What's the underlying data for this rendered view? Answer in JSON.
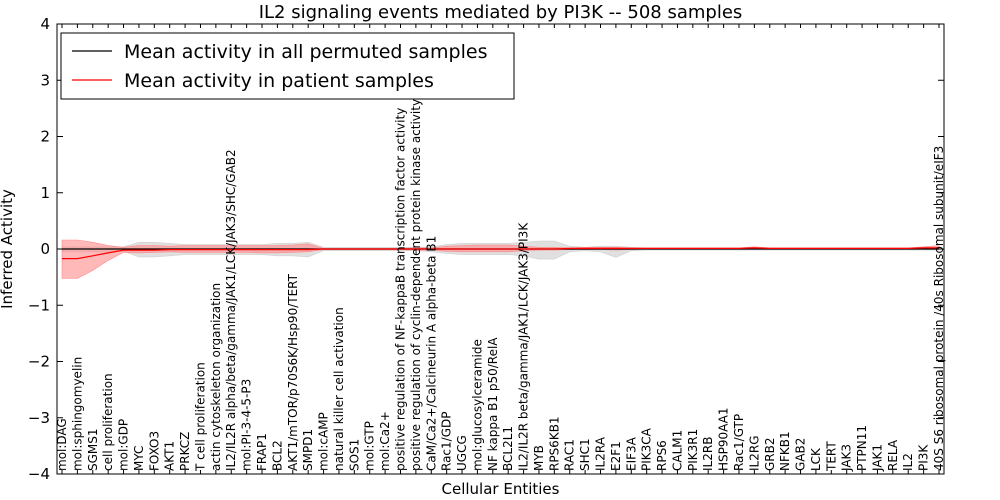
{
  "chart_data": {
    "type": "line",
    "title": "IL2 signaling events mediated by PI3K -- 508 samples",
    "xlabel": "Cellular Entities",
    "ylabel": "Inferred Activity",
    "ylim": [
      -4,
      4
    ],
    "yticks": [
      "4",
      "3",
      "2",
      "1",
      "0",
      "−1",
      "−2",
      "−3",
      "−4"
    ],
    "legend_position": "top-left",
    "categories": [
      "mol:DAG",
      "mol:sphingomyelin",
      "SGMS1",
      "cell proliferation",
      "mol:GDP",
      "MYC",
      "FOXO3",
      "AKT1",
      "PRKCZ",
      "T cell proliferation",
      "actin cytoskeleton organization",
      "IL2/IL2R alpha/beta/gamma/JAK1/LCK/JAK3/SHC/GAB2",
      "mol:PI-3-4-5-P3",
      "FRAP1",
      "BCL2",
      "AKT1/mTOR/p70S6K/Hsp90/TERT",
      "SMPD1",
      "mol:cAMP",
      "natural killer cell activation",
      "SOS1",
      "mol:GTP",
      "mol:Ca2+",
      "positive regulation of NF-kappaB transcription factor activity",
      "positive regulation of cyclin-dependent protein kinase activity",
      "CaM/Ca2+/Calcineurin A alpha-beta B1",
      "Rac1/GDP",
      "UGCG",
      "mol:glucosylceramide",
      "NF kappa B1 p50/RelA",
      "BCL2L1",
      "IL2/IL2R beta/gamma/JAK1/LCK/JAK3/PI3K",
      "MYB",
      "RPS6KB1",
      "RAC1",
      "SHC1",
      "IL2RA",
      "E2F1",
      "EIF3A",
      "PIK3CA",
      "RPS6",
      "CALM1",
      "PIK3R1",
      "IL2RB",
      "HSP90AA1",
      "Rac1/GTP",
      "IL2RG",
      "GRB2",
      "NFKB1",
      "GAB2",
      "LCK",
      "TERT",
      "JAK3",
      "PTPN11",
      "JAK1",
      "RELA",
      "IL2",
      "PI3K",
      "40S S6 ribosomal protein /40s Ribosomal subunit/eIF3"
    ],
    "series": [
      {
        "name": "Mean activity in all permuted samples",
        "color": "#000000",
        "band_color": "#d0d0d0",
        "values": [
          0,
          0,
          0,
          0,
          0,
          0,
          0,
          0,
          0,
          0,
          0,
          0,
          0,
          0,
          0,
          0,
          0,
          0,
          0,
          0,
          0,
          0,
          0,
          0,
          0,
          0,
          0,
          0,
          0,
          0,
          0,
          0,
          0,
          0,
          0,
          0,
          0,
          0,
          0,
          0,
          0,
          0,
          0,
          0,
          0,
          0,
          0,
          0,
          0,
          0,
          0,
          0,
          0,
          0,
          0,
          0,
          0,
          0
        ],
        "band_low": [
          -0.05,
          -0.05,
          -0.05,
          -0.05,
          -0.04,
          -0.14,
          -0.14,
          -0.12,
          -0.1,
          -0.1,
          -0.1,
          -0.1,
          -0.1,
          -0.1,
          -0.12,
          -0.12,
          -0.14,
          -0.03,
          -0.03,
          -0.03,
          -0.03,
          -0.03,
          -0.03,
          -0.03,
          -0.05,
          -0.08,
          -0.1,
          -0.1,
          -0.1,
          -0.1,
          -0.12,
          -0.18,
          -0.18,
          -0.05,
          -0.03,
          -0.05,
          -0.15,
          -0.03,
          -0.02,
          -0.02,
          -0.02,
          -0.02,
          -0.02,
          -0.02,
          -0.02,
          -0.02,
          -0.02,
          -0.02,
          -0.02,
          -0.02,
          -0.02,
          -0.02,
          -0.02,
          -0.02,
          -0.02,
          -0.02,
          -0.02,
          -0.02
        ],
        "band_high": [
          0.04,
          0.04,
          0.04,
          0.04,
          0.04,
          0.12,
          0.12,
          0.1,
          0.08,
          0.08,
          0.08,
          0.08,
          0.08,
          0.08,
          0.1,
          0.1,
          0.12,
          0.03,
          0.03,
          0.03,
          0.03,
          0.03,
          0.03,
          0.03,
          0.04,
          0.08,
          0.1,
          0.1,
          0.1,
          0.1,
          0.12,
          0.14,
          0.14,
          0.05,
          0.03,
          0.05,
          0.05,
          0.03,
          0.02,
          0.02,
          0.02,
          0.02,
          0.02,
          0.02,
          0.02,
          0.02,
          0.02,
          0.02,
          0.02,
          0.02,
          0.02,
          0.02,
          0.02,
          0.02,
          0.02,
          0.02,
          0.02,
          0.02
        ]
      },
      {
        "name": "Mean activity in patient samples",
        "color": "#ff0000",
        "band_color": "#ff8a8a",
        "values": [
          -0.17,
          -0.17,
          -0.12,
          -0.07,
          -0.02,
          -0.02,
          -0.02,
          -0.01,
          -0.01,
          -0.01,
          -0.01,
          -0.01,
          -0.01,
          -0.01,
          -0.01,
          -0.01,
          -0.01,
          0,
          0,
          0,
          0,
          0,
          0,
          0,
          0,
          0,
          0,
          0,
          0,
          0,
          0,
          0,
          0,
          0.01,
          0.01,
          0.01,
          0.01,
          0.01,
          0.01,
          0.01,
          0.01,
          0.01,
          0.01,
          0.01,
          0.01,
          0.02,
          0.01,
          0.01,
          0.01,
          0.01,
          0.01,
          0.01,
          0.01,
          0.01,
          0.01,
          0.01,
          0.02,
          0.02
        ],
        "band_low": [
          -0.52,
          -0.52,
          -0.38,
          -0.2,
          -0.06,
          -0.07,
          -0.06,
          -0.05,
          -0.06,
          -0.06,
          -0.06,
          -0.06,
          -0.06,
          -0.07,
          -0.07,
          -0.06,
          -0.05,
          -0.01,
          -0.01,
          -0.01,
          -0.01,
          -0.01,
          -0.01,
          -0.02,
          -0.02,
          -0.04,
          -0.05,
          -0.05,
          -0.05,
          -0.05,
          -0.03,
          -0.02,
          -0.02,
          -0.01,
          -0.01,
          -0.01,
          -0.02,
          -0.01,
          0,
          0,
          0,
          0,
          0,
          0,
          0,
          0,
          0,
          0,
          0,
          0,
          0,
          0,
          0,
          0,
          0,
          0,
          0,
          0
        ],
        "band_high": [
          0.16,
          0.16,
          0.12,
          0.06,
          0.03,
          0.06,
          0.06,
          0.05,
          0.06,
          0.06,
          0.06,
          0.06,
          0.06,
          0.06,
          0.06,
          0.07,
          0.09,
          0.01,
          0.01,
          0.01,
          0.01,
          0.01,
          0.01,
          0.02,
          0.02,
          0.05,
          0.06,
          0.07,
          0.07,
          0.07,
          0.05,
          0.03,
          0.03,
          0.02,
          0.03,
          0.03,
          0.03,
          0.02,
          0.02,
          0.02,
          0.02,
          0.02,
          0.02,
          0.02,
          0.02,
          0.04,
          0.02,
          0.02,
          0.02,
          0.02,
          0.02,
          0.02,
          0.02,
          0.02,
          0.02,
          0.02,
          0.04,
          0.06
        ]
      }
    ]
  }
}
